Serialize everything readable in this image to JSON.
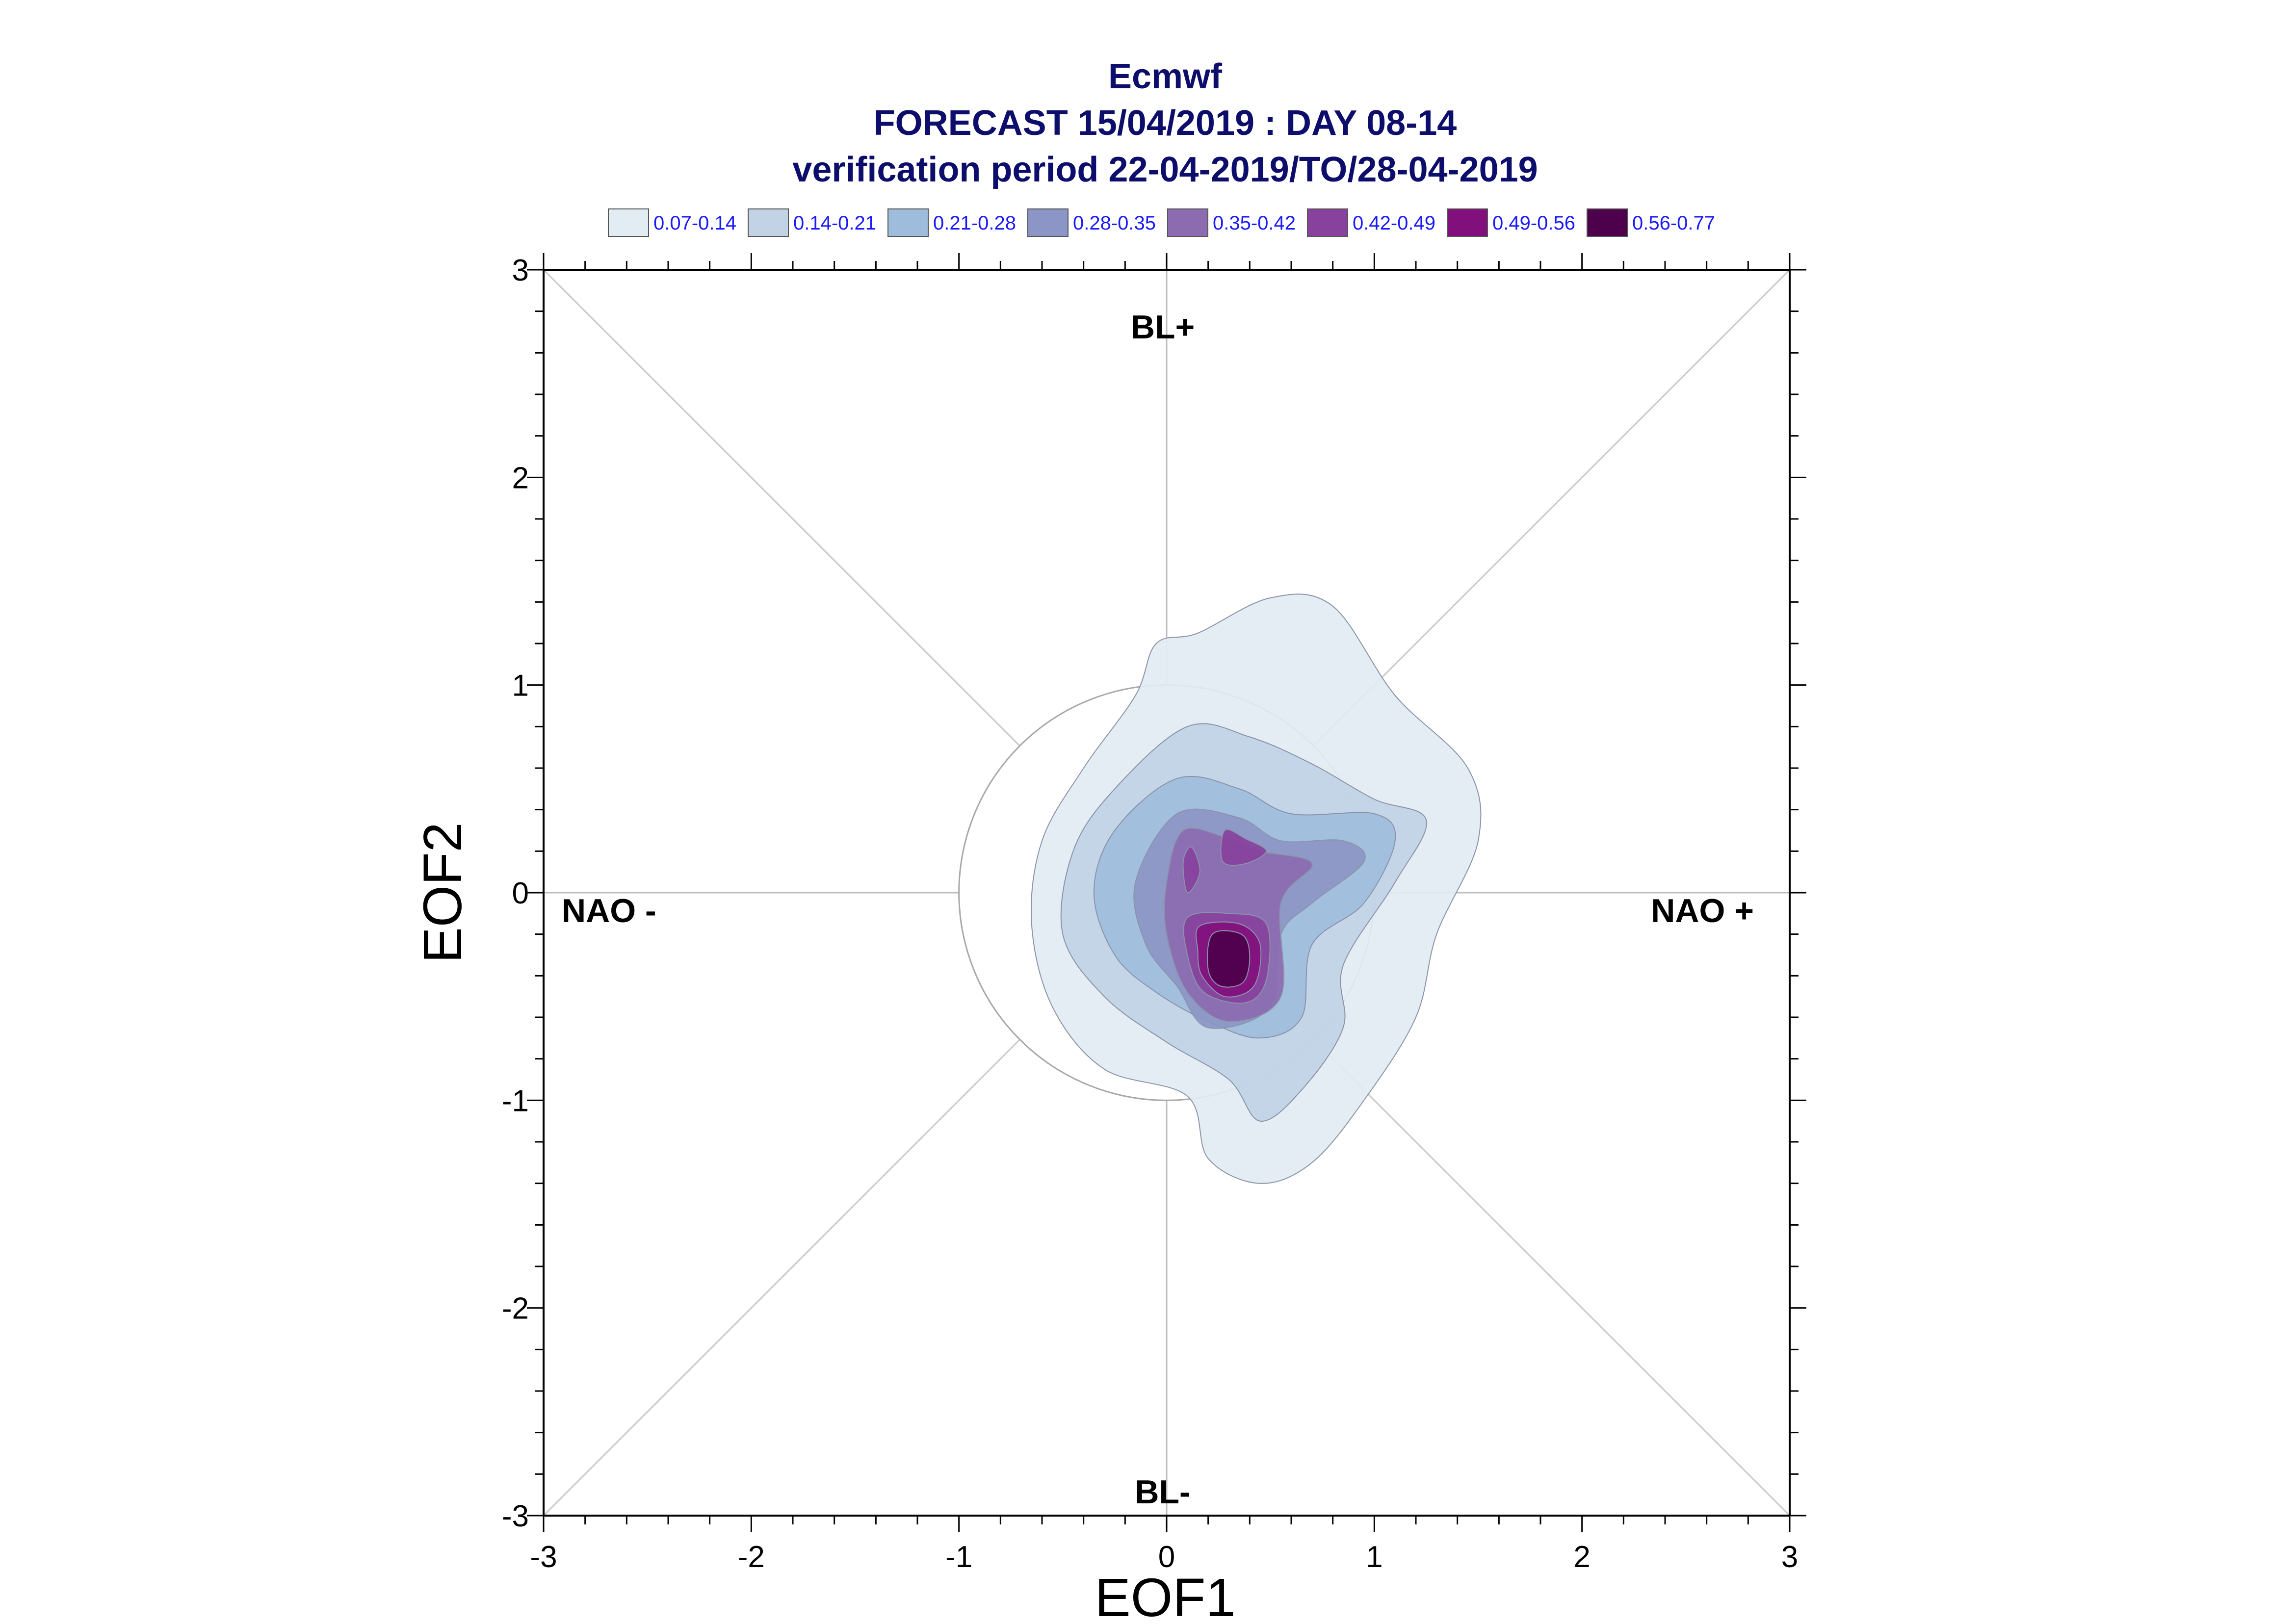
{
  "chart_data": {
    "type": "contour",
    "title": [
      "Ecmwf",
      "FORECAST 15/04/2019 : DAY 08-14",
      "verification period 22-04-2019/TO/28-04-2019"
    ],
    "xlabel": "EOF1",
    "ylabel": "EOF2",
    "xlim": [
      -3,
      3
    ],
    "ylim": [
      -3,
      3
    ],
    "xticks": [
      "-3",
      "-2",
      "-1",
      "0",
      "1",
      "2",
      "3"
    ],
    "yticks": [
      "3",
      "2",
      "1",
      "0",
      "-1",
      "-2",
      "-3"
    ],
    "legend": [
      {
        "label": "0.07-0.14",
        "color": "#e2ecf3"
      },
      {
        "label": "0.14-0.21",
        "color": "#c1d3e5"
      },
      {
        "label": "0.21-0.28",
        "color": "#9ebddd"
      },
      {
        "label": "0.28-0.35",
        "color": "#8c96c6"
      },
      {
        "label": "0.35-0.42",
        "color": "#8c6bb1"
      },
      {
        "label": "0.42-0.49",
        "color": "#88419d"
      },
      {
        "label": "0.49-0.56",
        "color": "#810f7c"
      },
      {
        "label": "0.56-0.77",
        "color": "#4d004b"
      }
    ],
    "regime_labels": {
      "top": "BL+",
      "bottom": "BL-",
      "left": "NAO -",
      "right": "NAO +"
    },
    "reference_circle_radius": 1,
    "density_peak": {
      "x": 0.3,
      "y": -0.3
    },
    "contours": [
      {
        "level": "0.07-0.14",
        "points": [
          [
            0.15,
            1.25
          ],
          [
            0.5,
            1.42
          ],
          [
            0.8,
            1.38
          ],
          [
            1.1,
            0.95
          ],
          [
            1.45,
            0.6
          ],
          [
            1.5,
            0.25
          ],
          [
            1.3,
            -0.2
          ],
          [
            1.2,
            -0.6
          ],
          [
            0.95,
            -1.0
          ],
          [
            0.7,
            -1.3
          ],
          [
            0.45,
            -1.4
          ],
          [
            0.2,
            -1.28
          ],
          [
            0.1,
            -0.98
          ],
          [
            -0.3,
            -0.85
          ],
          [
            -0.55,
            -0.55
          ],
          [
            -0.65,
            -0.15
          ],
          [
            -0.6,
            0.25
          ],
          [
            -0.4,
            0.6
          ],
          [
            -0.15,
            0.95
          ],
          [
            -0.05,
            1.2
          ]
        ]
      },
      {
        "level": "0.14-0.21",
        "points": [
          [
            0.1,
            0.8
          ],
          [
            0.4,
            0.75
          ],
          [
            0.7,
            0.62
          ],
          [
            1.0,
            0.45
          ],
          [
            1.25,
            0.35
          ],
          [
            1.1,
            0.05
          ],
          [
            0.85,
            -0.35
          ],
          [
            0.85,
            -0.65
          ],
          [
            0.65,
            -0.95
          ],
          [
            0.45,
            -1.1
          ],
          [
            0.3,
            -0.9
          ],
          [
            0.0,
            -0.72
          ],
          [
            -0.3,
            -0.5
          ],
          [
            -0.5,
            -0.2
          ],
          [
            -0.45,
            0.2
          ],
          [
            -0.25,
            0.5
          ]
        ]
      },
      {
        "level": "0.21-0.28",
        "points": [
          [
            0.05,
            0.55
          ],
          [
            0.35,
            0.5
          ],
          [
            0.6,
            0.38
          ],
          [
            1.0,
            0.38
          ],
          [
            1.1,
            0.25
          ],
          [
            0.95,
            -0.05
          ],
          [
            0.7,
            -0.25
          ],
          [
            0.65,
            -0.6
          ],
          [
            0.45,
            -0.7
          ],
          [
            0.2,
            -0.62
          ],
          [
            -0.05,
            -0.48
          ],
          [
            -0.25,
            -0.3
          ],
          [
            -0.35,
            0.0
          ],
          [
            -0.25,
            0.3
          ]
        ]
      },
      {
        "level": "0.28-0.35",
        "points": [
          [
            0.05,
            0.38
          ],
          [
            0.35,
            0.36
          ],
          [
            0.55,
            0.25
          ],
          [
            0.85,
            0.25
          ],
          [
            0.95,
            0.15
          ],
          [
            0.7,
            -0.05
          ],
          [
            0.55,
            -0.2
          ],
          [
            0.5,
            -0.55
          ],
          [
            0.2,
            -0.65
          ],
          [
            0.05,
            -0.45
          ],
          [
            -0.1,
            -0.25
          ],
          [
            -0.15,
            0.05
          ]
        ]
      },
      {
        "level": "0.35-0.42",
        "points": [
          [
            0.08,
            0.3
          ],
          [
            0.3,
            0.26
          ],
          [
            0.45,
            0.2
          ],
          [
            0.7,
            0.14
          ],
          [
            0.55,
            -0.05
          ],
          [
            0.55,
            -0.5
          ],
          [
            0.3,
            -0.62
          ],
          [
            0.1,
            -0.48
          ],
          [
            0.0,
            -0.2
          ],
          [
            0.0,
            0.05
          ]
        ]
      },
      {
        "level": "0.42-0.49",
        "points": [
          [
            0.28,
            0.3
          ],
          [
            0.38,
            0.26
          ],
          [
            0.48,
            0.2
          ],
          [
            0.38,
            0.14
          ],
          [
            0.27,
            0.15
          ]
        ]
      },
      {
        "level": "0.42-0.49",
        "points": [
          [
            0.1,
            -0.12
          ],
          [
            0.3,
            -0.1
          ],
          [
            0.48,
            -0.15
          ],
          [
            0.48,
            -0.42
          ],
          [
            0.38,
            -0.53
          ],
          [
            0.18,
            -0.48
          ],
          [
            0.1,
            -0.3
          ]
        ]
      },
      {
        "level": "0.42-0.49",
        "points": [
          [
            0.1,
            0.0
          ],
          [
            0.16,
            0.1
          ],
          [
            0.12,
            0.22
          ],
          [
            0.08,
            0.15
          ]
        ]
      },
      {
        "level": "0.49-0.56",
        "points": [
          [
            0.16,
            -0.16
          ],
          [
            0.35,
            -0.15
          ],
          [
            0.45,
            -0.25
          ],
          [
            0.42,
            -0.45
          ],
          [
            0.28,
            -0.5
          ],
          [
            0.17,
            -0.4
          ],
          [
            0.15,
            -0.28
          ]
        ]
      },
      {
        "level": "0.56-0.77",
        "points": [
          [
            0.22,
            -0.2
          ],
          [
            0.36,
            -0.2
          ],
          [
            0.4,
            -0.3
          ],
          [
            0.37,
            -0.43
          ],
          [
            0.26,
            -0.45
          ],
          [
            0.2,
            -0.37
          ]
        ]
      }
    ]
  }
}
